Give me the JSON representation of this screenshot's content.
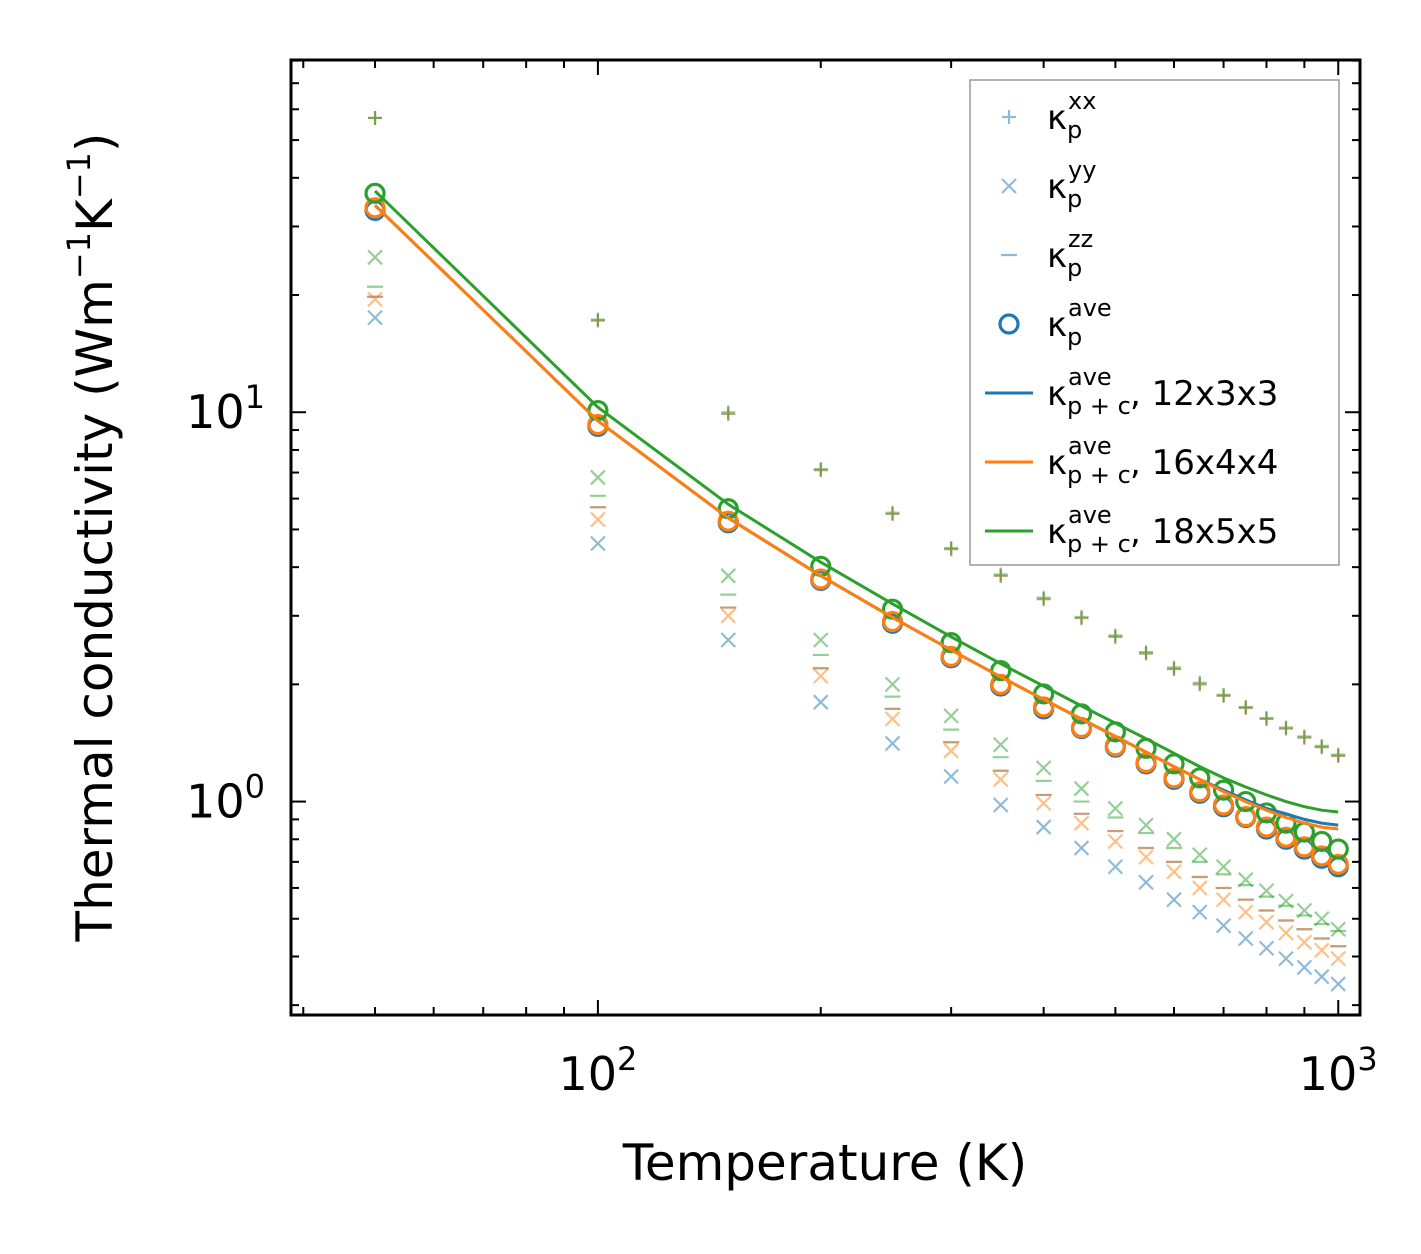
{
  "chart_data": {
    "type": "scatter",
    "xlabel": "Temperature (K)",
    "ylabel": {
      "main": "Thermal conductivity (Wm",
      "exp1": "−1",
      "mid": "K",
      "exp2": "−1",
      "end": ")"
    },
    "xscale": "log",
    "yscale": "log",
    "xlim": [
      38.5,
      1070
    ],
    "ylim": [
      0.283,
      80.3
    ],
    "x_ticks": [
      {
        "value": 100,
        "base": "10",
        "exp": "2"
      },
      {
        "value": 1000,
        "base": "10",
        "exp": "3"
      }
    ],
    "y_ticks": [
      {
        "value": 1,
        "base": "10",
        "exp": "0"
      },
      {
        "value": 10,
        "base": "10",
        "exp": "1"
      }
    ],
    "legend_position": "top-right",
    "colors": {
      "blue": "#1f77b4",
      "orange": "#ff7f0e",
      "green": "#2ca02c"
    },
    "temperatures": [
      50,
      100,
      150,
      200,
      250,
      300,
      350,
      400,
      450,
      500,
      550,
      600,
      650,
      700,
      750,
      800,
      850,
      900,
      950,
      1000
    ],
    "series": [
      {
        "name": "kp_xx",
        "marker": "plus",
        "component": "xx",
        "alpha": 0.5,
        "runs": [
          {
            "color": "blue",
            "values": [
              57,
              17.2,
              9.9,
              7.1,
              5.48,
              4.45,
              3.8,
              3.31,
              2.96,
              2.65,
              2.4,
              2.19,
              2.0,
              1.87,
              1.74,
              1.63,
              1.54,
              1.46,
              1.38,
              1.31
            ]
          },
          {
            "color": "orange",
            "values": [
              57,
              17.2,
              9.9,
              7.1,
              5.48,
              4.45,
              3.8,
              3.31,
              2.96,
              2.65,
              2.4,
              2.19,
              2.0,
              1.87,
              1.74,
              1.63,
              1.54,
              1.46,
              1.38,
              1.31
            ]
          },
          {
            "color": "green",
            "values": [
              57,
              17.3,
              10.0,
              7.15,
              5.52,
              4.48,
              3.83,
              3.34,
              2.98,
              2.67,
              2.42,
              2.21,
              2.02,
              1.88,
              1.75,
              1.64,
              1.55,
              1.47,
              1.39,
              1.32
            ]
          }
        ]
      },
      {
        "name": "kp_yy",
        "marker": "x",
        "component": "yy",
        "alpha": 0.5,
        "runs": [
          {
            "color": "blue",
            "values": [
              17.5,
              4.6,
              2.6,
              1.8,
              1.41,
              1.16,
              0.98,
              0.86,
              0.76,
              0.68,
              0.62,
              0.56,
              0.52,
              0.48,
              0.445,
              0.42,
              0.395,
              0.375,
              0.355,
              0.34
            ]
          },
          {
            "color": "orange",
            "values": [
              19.5,
              5.3,
              3.0,
              2.1,
              1.63,
              1.35,
              1.14,
              0.99,
              0.88,
              0.79,
              0.72,
              0.66,
              0.6,
              0.56,
              0.52,
              0.49,
              0.46,
              0.435,
              0.415,
              0.395
            ]
          },
          {
            "color": "green",
            "values": [
              25,
              6.8,
              3.8,
              2.6,
              2.0,
              1.66,
              1.4,
              1.22,
              1.08,
              0.96,
              0.87,
              0.8,
              0.73,
              0.68,
              0.63,
              0.59,
              0.555,
              0.525,
              0.5,
              0.47
            ]
          }
        ]
      },
      {
        "name": "kp_zz",
        "marker": "dash",
        "component": "zz",
        "alpha": 0.5,
        "runs": [
          {
            "color": "blue",
            "values": [
              19.8,
              5.7,
              3.15,
              2.2,
              1.73,
              1.42,
              1.2,
              1.04,
              0.93,
              0.84,
              0.76,
              0.7,
              0.64,
              0.6,
              0.56,
              0.525,
              0.495,
              0.47,
              0.445,
              0.425
            ]
          },
          {
            "color": "orange",
            "values": [
              19.8,
              5.7,
              3.15,
              2.2,
              1.73,
              1.42,
              1.2,
              1.04,
              0.93,
              0.84,
              0.76,
              0.7,
              0.64,
              0.6,
              0.56,
              0.525,
              0.495,
              0.47,
              0.445,
              0.425
            ]
          },
          {
            "color": "green",
            "values": [
              21,
              6.1,
              3.4,
              2.38,
              1.86,
              1.53,
              1.3,
              1.13,
              1.0,
              0.91,
              0.83,
              0.76,
              0.7,
              0.65,
              0.61,
              0.57,
              0.54,
              0.51,
              0.485,
              0.465
            ]
          }
        ]
      },
      {
        "name": "kp_ave",
        "marker": "circle",
        "component": "ave",
        "runs": [
          {
            "color": "blue",
            "values": [
              33,
              9.2,
              5.2,
              3.7,
              2.87,
              2.34,
              1.98,
              1.73,
              1.54,
              1.38,
              1.25,
              1.14,
              1.05,
              0.97,
              0.91,
              0.85,
              0.8,
              0.755,
              0.715,
              0.68
            ]
          },
          {
            "color": "orange",
            "values": [
              33.5,
              9.3,
              5.25,
              3.73,
              2.9,
              2.36,
              2.0,
              1.75,
              1.55,
              1.39,
              1.26,
              1.15,
              1.06,
              0.98,
              0.915,
              0.86,
              0.81,
              0.765,
              0.725,
              0.69
            ]
          },
          {
            "color": "green",
            "values": [
              36.5,
              10.1,
              5.65,
              4.02,
              3.12,
              2.56,
              2.17,
              1.89,
              1.68,
              1.51,
              1.37,
              1.25,
              1.15,
              1.07,
              1.0,
              0.935,
              0.88,
              0.835,
              0.79,
              0.755
            ]
          }
        ]
      },
      {
        "name": "kpc_ave_12x3x3",
        "type": "line",
        "color": "blue",
        "label_suffix": ", 12x3x3",
        "values": [
          34.0,
          9.5,
          5.35,
          3.8,
          2.97,
          2.45,
          2.09,
          1.83,
          1.63,
          1.47,
          1.34,
          1.23,
          1.14,
          1.07,
          1.01,
          0.96,
          0.93,
          0.9,
          0.88,
          0.87
        ]
      },
      {
        "name": "kpc_ave_16x4x4",
        "type": "line",
        "color": "orange",
        "label_suffix": ", 16x4x4",
        "values": [
          34.0,
          9.5,
          5.35,
          3.8,
          2.97,
          2.45,
          2.09,
          1.83,
          1.63,
          1.47,
          1.34,
          1.23,
          1.14,
          1.06,
          1.0,
          0.95,
          0.91,
          0.88,
          0.86,
          0.85
        ]
      },
      {
        "name": "kpc_ave_18x5x5",
        "type": "line",
        "color": "green",
        "label_suffix": ", 18x5x5",
        "values": [
          37.0,
          10.3,
          5.8,
          4.12,
          3.22,
          2.65,
          2.26,
          1.98,
          1.76,
          1.59,
          1.45,
          1.33,
          1.23,
          1.15,
          1.09,
          1.04,
          1.0,
          0.97,
          0.95,
          0.94
        ]
      }
    ],
    "legend": [
      {
        "marker": "plus",
        "color": "blue",
        "sym": "κ",
        "sub": "p",
        "sup": "xx",
        "suffix": ""
      },
      {
        "marker": "x",
        "color": "blue",
        "sym": "κ",
        "sub": "p",
        "sup": "yy",
        "suffix": ""
      },
      {
        "marker": "dash",
        "color": "blue",
        "sym": "κ",
        "sub": "p",
        "sup": "zz",
        "suffix": ""
      },
      {
        "marker": "circle",
        "color": "blue",
        "sym": "κ",
        "sub": "p",
        "sup": "ave",
        "suffix": ""
      },
      {
        "marker": "line",
        "color": "blue",
        "sym": "κ",
        "sub": "p + c",
        "sup": "ave",
        "suffix": ", 12x3x3"
      },
      {
        "marker": "line",
        "color": "orange",
        "sym": "κ",
        "sub": "p + c",
        "sup": "ave",
        "suffix": ", 16x4x4"
      },
      {
        "marker": "line",
        "color": "green",
        "sym": "κ",
        "sub": "p + c",
        "sup": "ave",
        "suffix": ", 18x5x5"
      }
    ]
  }
}
